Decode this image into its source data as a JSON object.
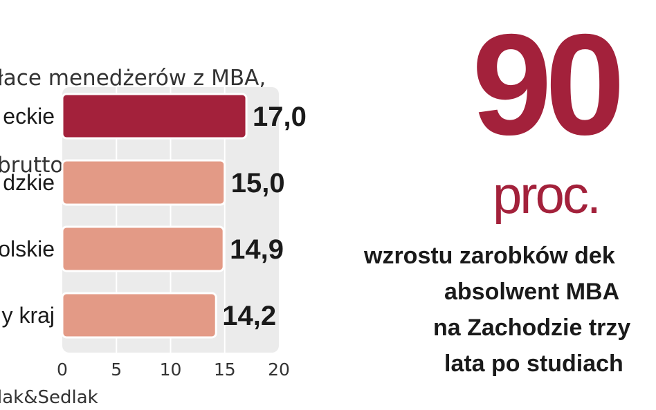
{
  "chart_data": {
    "type": "bar",
    "orientation": "horizontal",
    "title_lines": [
      "łace menedżerów z MBA,",
      "brutto"
    ],
    "categories": [
      "eckie",
      "dzkie",
      "olskie",
      "y kraj"
    ],
    "values": [
      17.0,
      15.0,
      14.9,
      14.2
    ],
    "value_labels": [
      "17,0",
      "15,0",
      "14,9",
      "14,2"
    ],
    "xlim": [
      0,
      20
    ],
    "xticks": [
      0,
      5,
      10,
      15,
      20
    ],
    "xtick_labels": [
      "0",
      "5",
      "10",
      "15",
      "20"
    ],
    "grid": true,
    "colors": {
      "highlight": "#a3213b",
      "bar": "#e39a86",
      "plot_bg": "#ebebeb",
      "gridline": "#ffffff"
    },
    "highlight_index": 0
  },
  "source": "lak&Sedlak",
  "callout": {
    "number": "90",
    "unit": "proc.",
    "color": "#a3213b",
    "caption_lines": [
      "wzrostu zarobków dek",
      "absolwent MBA",
      "na Zachodzie trzy",
      "lata po studiach"
    ]
  }
}
